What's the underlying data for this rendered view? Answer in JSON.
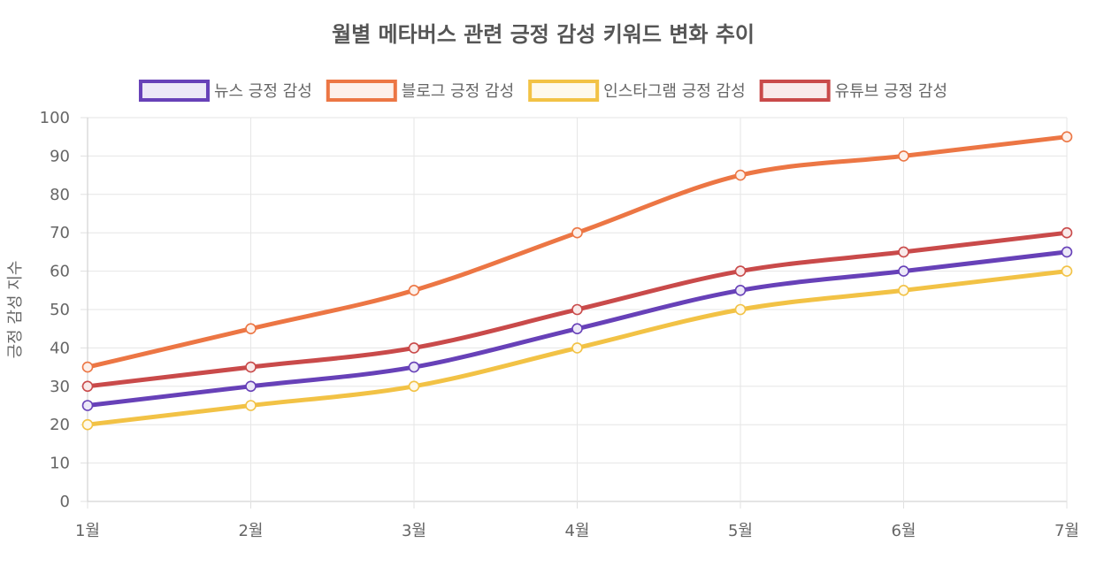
{
  "chart_data": {
    "type": "line",
    "title": "월별 메타버스 관련 긍정 감성 키워드 변화 추이",
    "xlabel": "",
    "ylabel": "긍정 감성 지수",
    "categories": [
      "1월",
      "2월",
      "3월",
      "4월",
      "5월",
      "6월",
      "7월"
    ],
    "ylim": [
      0,
      100
    ],
    "yticks": [
      0,
      10,
      20,
      30,
      40,
      50,
      60,
      70,
      80,
      90,
      100
    ],
    "grid": true,
    "legend_position": "top",
    "series": [
      {
        "name": "뉴스 긍정 감성",
        "color": "#6741b8",
        "fill": "#ece8f7",
        "values": [
          25,
          30,
          35,
          45,
          55,
          60,
          65
        ]
      },
      {
        "name": "블로그 긍정 감성",
        "color": "#ec7644",
        "fill": "#fdf0ea",
        "values": [
          35,
          45,
          55,
          70,
          85,
          90,
          95
        ]
      },
      {
        "name": "인스타그램 긍정 감성",
        "color": "#f2c245",
        "fill": "#fef9ec",
        "values": [
          20,
          25,
          30,
          40,
          50,
          55,
          60
        ]
      },
      {
        "name": "유튜브 긍정 감성",
        "color": "#c94a4a",
        "fill": "#f9eaea",
        "values": [
          30,
          35,
          40,
          50,
          60,
          65,
          70
        ]
      }
    ]
  }
}
